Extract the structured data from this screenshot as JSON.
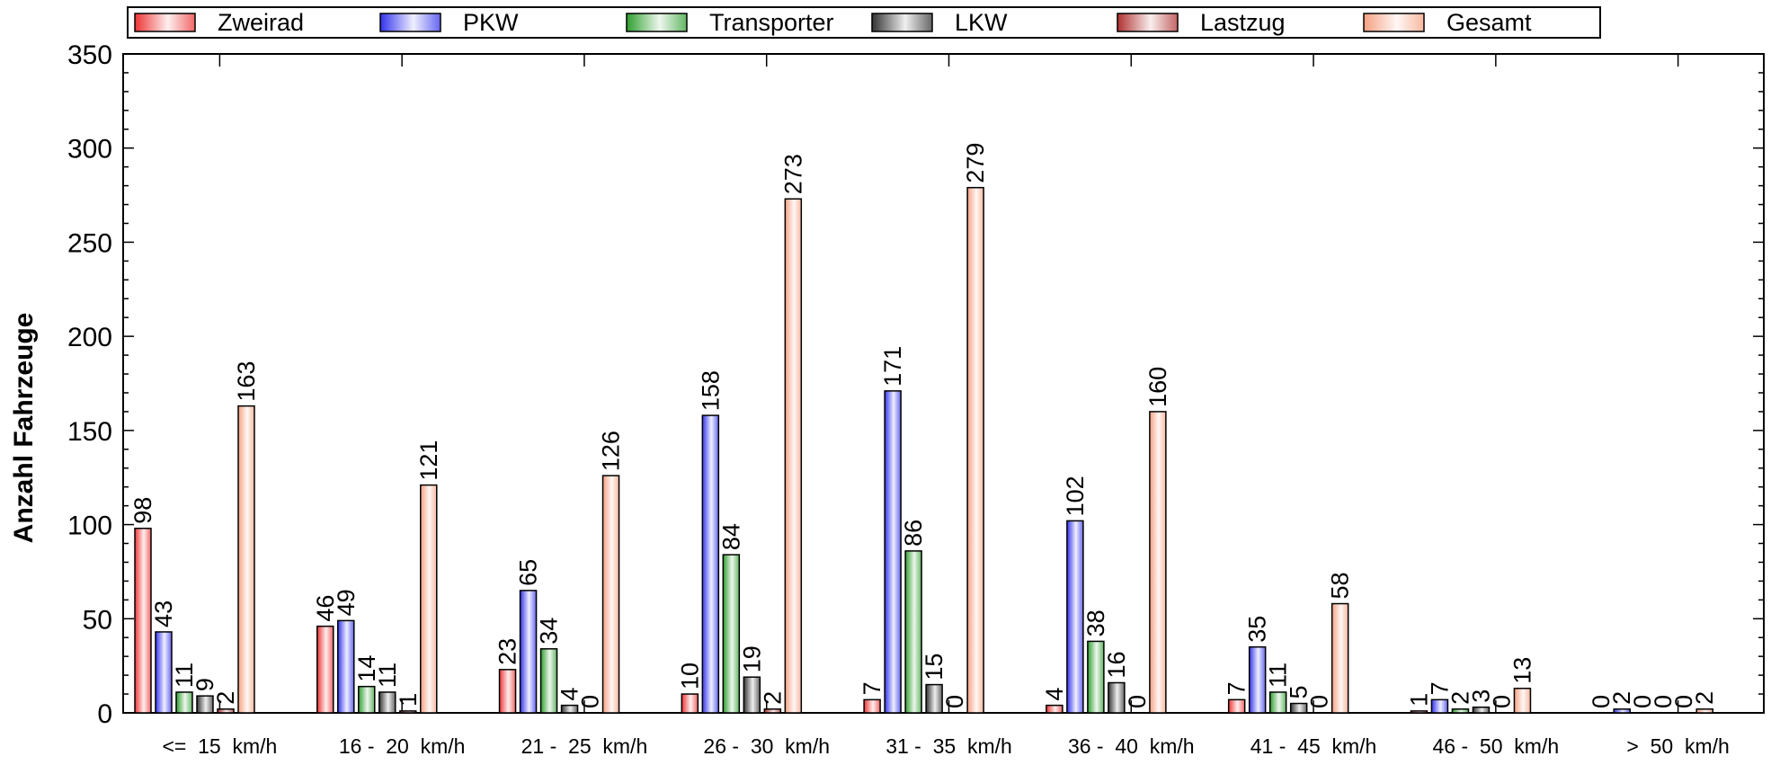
{
  "chart_data": {
    "type": "bar",
    "title": "",
    "xlabel": "",
    "ylabel": "Anzahl Fahrzeuge",
    "ylim": [
      0,
      350
    ],
    "y_major_ticks": [
      0,
      50,
      100,
      150,
      200,
      250,
      300,
      350
    ],
    "y_minor_step": 10,
    "grid": false,
    "legend_position": "top",
    "categories": [
      "<=  15  km/h",
      "16 -  20  km/h",
      "21 -  25  km/h",
      "26 -  30  km/h",
      "31 -  35  km/h",
      "36 -  40  km/h",
      "41 -  45  km/h",
      "46 -  50  km/h",
      ">  50  km/h"
    ],
    "series": [
      {
        "name": "Zweirad",
        "color": "#ee3333",
        "values": [
          98,
          46,
          23,
          10,
          7,
          4,
          7,
          1,
          0
        ]
      },
      {
        "name": "PKW",
        "color": "#3333ee",
        "values": [
          43,
          49,
          65,
          158,
          171,
          102,
          35,
          7,
          2
        ]
      },
      {
        "name": "Transporter",
        "color": "#2e9e2e",
        "values": [
          11,
          14,
          34,
          84,
          86,
          38,
          11,
          2,
          0
        ]
      },
      {
        "name": "LKW",
        "color": "#333333",
        "values": [
          9,
          11,
          4,
          19,
          15,
          16,
          5,
          3,
          0
        ]
      },
      {
        "name": "Lastzug",
        "color": "#b03030",
        "values": [
          2,
          1,
          0,
          2,
          0,
          0,
          0,
          0,
          0
        ]
      },
      {
        "name": "Gesamt",
        "color": "#f5a080",
        "values": [
          163,
          121,
          126,
          273,
          279,
          160,
          58,
          13,
          2
        ]
      }
    ]
  }
}
